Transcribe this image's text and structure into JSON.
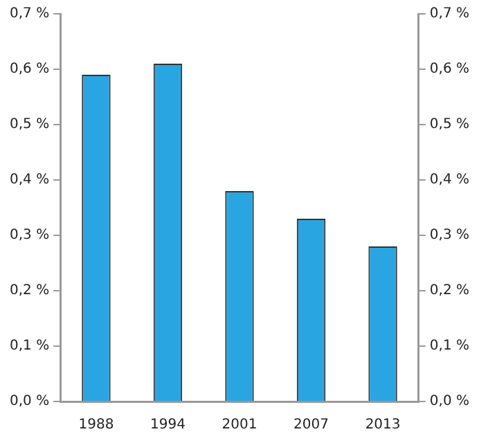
{
  "chart_data": {
    "type": "bar",
    "categories": [
      "1988",
      "1994",
      "2001",
      "2007",
      "2013"
    ],
    "values": [
      0.59,
      0.61,
      0.38,
      0.33,
      0.28
    ],
    "color": "#29a6e1",
    "ylim": [
      0,
      0.7
    ],
    "yticks": [
      {
        "value": 0,
        "label": "0,0 %"
      },
      {
        "value": 0.1,
        "label": "0,1 %"
      },
      {
        "value": 0.2,
        "label": "0,2 %"
      },
      {
        "value": 0.3,
        "label": "0,3 %"
      },
      {
        "value": 0.4,
        "label": "0,4 %"
      },
      {
        "value": 0.5,
        "label": "0,5 %"
      },
      {
        "value": 0.6,
        "label": "0,6 %"
      },
      {
        "value": 0.7,
        "label": "0,7 %"
      }
    ],
    "y2lim": [
      0,
      0.7
    ],
    "y2ticks": [
      {
        "value": 0,
        "label": "0,0 %"
      },
      {
        "value": 0.1,
        "label": "0,1 %"
      },
      {
        "value": 0.2,
        "label": "0,2 %"
      },
      {
        "value": 0.3,
        "label": "0,3 %"
      },
      {
        "value": 0.4,
        "label": "0,4 %"
      },
      {
        "value": 0.5,
        "label": "0,5 %"
      },
      {
        "value": 0.6,
        "label": "0,6 %"
      },
      {
        "value": 0.7,
        "label": "0,7 %"
      }
    ],
    "grid": false,
    "legend": false
  }
}
